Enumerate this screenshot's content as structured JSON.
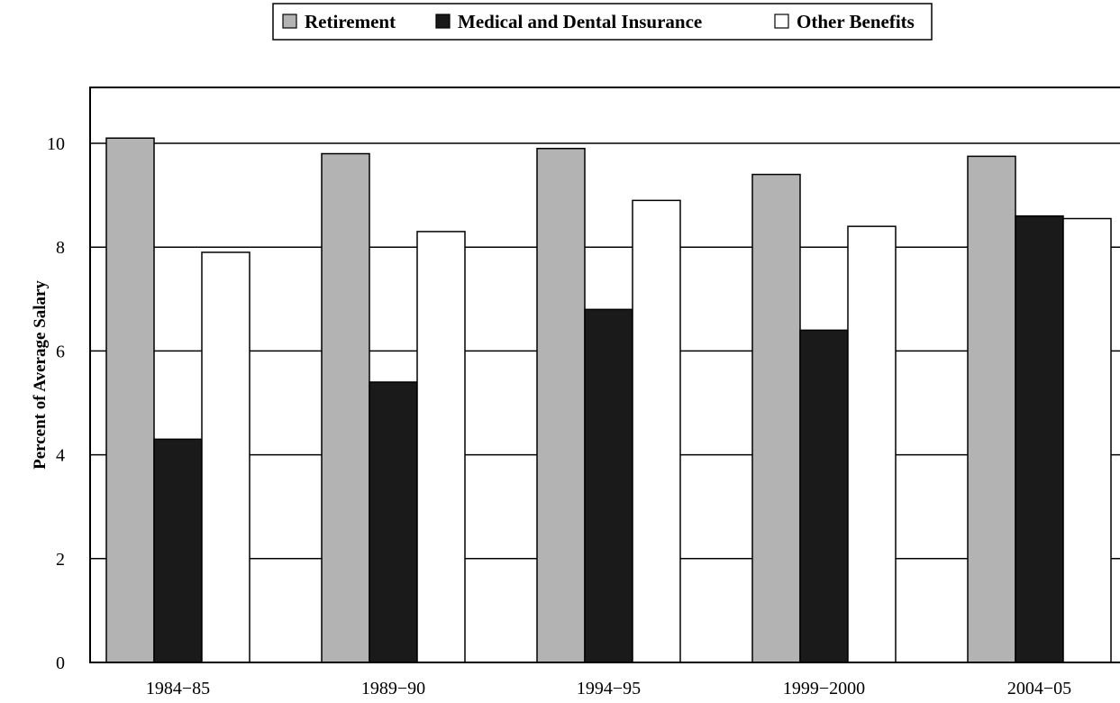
{
  "chart_data": {
    "type": "bar",
    "categories": [
      "1984−85",
      "1989−90",
      "1994−95",
      "1999−2000",
      "2004−05"
    ],
    "series": [
      {
        "name": "Retirement",
        "color": "#b3b3b3",
        "values": [
          10.1,
          9.8,
          9.9,
          9.4,
          9.75
        ]
      },
      {
        "name": "Medical and Dental Insurance",
        "color": "#1a1a1a",
        "values": [
          4.3,
          5.4,
          6.8,
          6.4,
          8.6
        ]
      },
      {
        "name": "Other Benefits",
        "color": "#ffffff",
        "values": [
          7.9,
          8.3,
          8.9,
          8.4,
          8.55
        ]
      }
    ],
    "ylabel": "Percent of Average Salary",
    "xlabel": "",
    "ylim": [
      0,
      11
    ],
    "yticks": [
      "0",
      "2",
      "4",
      "6",
      "8",
      "10"
    ],
    "grid": "horizontal",
    "legend_position": "top-center"
  }
}
